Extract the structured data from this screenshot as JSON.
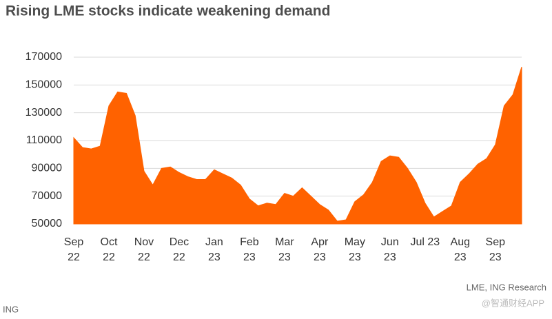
{
  "chart_data": {
    "type": "area",
    "title": "Rising LME stocks indicate weakening demand",
    "source": "LME, ING Research",
    "footer": "ING",
    "watermark": "@智通财经APP",
    "color": "#ff6200",
    "grid": true,
    "ylim": [
      50000,
      170000
    ],
    "yticks": [
      50000,
      70000,
      90000,
      110000,
      130000,
      150000,
      170000
    ],
    "categories": [
      "Sep\n22",
      null,
      null,
      null,
      "Oct\n22",
      null,
      null,
      null,
      "Nov\n22",
      null,
      null,
      null,
      "Dec\n22",
      null,
      null,
      null,
      "Jan\n23",
      null,
      null,
      null,
      "Feb\n23",
      null,
      null,
      null,
      "Mar\n23",
      null,
      null,
      null,
      "Apr\n23",
      null,
      null,
      null,
      "May\n23",
      null,
      null,
      null,
      "Jun\n23",
      null,
      null,
      null,
      "Jul 23",
      null,
      null,
      null,
      "Aug\n23",
      null,
      null,
      null,
      "Sep\n23",
      null,
      null,
      null
    ],
    "values": [
      112000,
      105000,
      104000,
      106000,
      135000,
      145000,
      144000,
      128000,
      88000,
      78000,
      90000,
      91000,
      87000,
      84000,
      82000,
      82000,
      89000,
      86000,
      83000,
      78000,
      68000,
      63000,
      65000,
      64000,
      72000,
      70000,
      76000,
      70000,
      64000,
      60000,
      52000,
      53000,
      66000,
      71000,
      80000,
      95000,
      99000,
      98000,
      90000,
      80000,
      65000,
      55000,
      59000,
      63000,
      80000,
      86000,
      93000,
      97000,
      107000,
      135000,
      143000,
      163000
    ]
  }
}
